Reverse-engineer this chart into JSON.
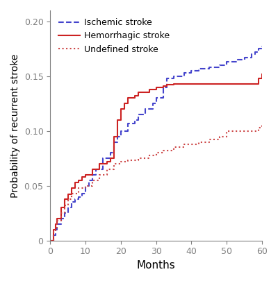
{
  "title": "",
  "xlabel": "Months",
  "ylabel": "Probability of recurrent stroke",
  "xlim": [
    0,
    60
  ],
  "ylim": [
    0,
    0.21
  ],
  "yticks": [
    0,
    0.05,
    0.1,
    0.15,
    0.2
  ],
  "xticks": [
    0,
    10,
    20,
    30,
    40,
    50,
    60
  ],
  "ischemic_x": [
    0,
    1,
    1.5,
    2,
    3,
    4,
    5,
    6,
    7,
    8,
    9,
    10,
    11,
    12,
    13,
    15,
    17,
    18,
    19,
    20,
    22,
    24,
    25,
    27,
    29,
    30,
    32,
    33,
    35,
    38,
    40,
    42,
    45,
    48,
    50,
    53,
    55,
    57,
    58,
    59,
    60
  ],
  "ischemic_y": [
    0,
    0.005,
    0.01,
    0.015,
    0.02,
    0.025,
    0.03,
    0.035,
    0.038,
    0.04,
    0.043,
    0.05,
    0.055,
    0.06,
    0.065,
    0.075,
    0.08,
    0.09,
    0.095,
    0.1,
    0.107,
    0.11,
    0.115,
    0.12,
    0.125,
    0.13,
    0.14,
    0.148,
    0.15,
    0.153,
    0.155,
    0.157,
    0.158,
    0.16,
    0.163,
    0.165,
    0.167,
    0.17,
    0.172,
    0.175,
    0.178
  ],
  "hemorrhagic_x": [
    0,
    1,
    1.5,
    2,
    3,
    4,
    5,
    6,
    7,
    8,
    9,
    10,
    12,
    14,
    16,
    17,
    18,
    19,
    20,
    21,
    22,
    24,
    25,
    28,
    30,
    32,
    33,
    35,
    40,
    45,
    50,
    55,
    58,
    59,
    60
  ],
  "hemorrhagic_y": [
    0,
    0.01,
    0.015,
    0.02,
    0.03,
    0.038,
    0.042,
    0.048,
    0.053,
    0.055,
    0.058,
    0.06,
    0.065,
    0.07,
    0.072,
    0.075,
    0.095,
    0.11,
    0.12,
    0.125,
    0.13,
    0.132,
    0.135,
    0.138,
    0.14,
    0.141,
    0.142,
    0.143,
    0.143,
    0.143,
    0.143,
    0.143,
    0.143,
    0.148,
    0.152
  ],
  "undefined_x": [
    0,
    1,
    1.5,
    2,
    3,
    4,
    5,
    6,
    8,
    10,
    12,
    14,
    16,
    18,
    20,
    22,
    25,
    28,
    30,
    32,
    35,
    38,
    42,
    45,
    48,
    50,
    53,
    55,
    57,
    59,
    60
  ],
  "undefined_y": [
    0,
    0.008,
    0.012,
    0.018,
    0.025,
    0.032,
    0.038,
    0.043,
    0.048,
    0.05,
    0.055,
    0.06,
    0.065,
    0.07,
    0.072,
    0.073,
    0.075,
    0.078,
    0.08,
    0.082,
    0.085,
    0.088,
    0.09,
    0.092,
    0.095,
    0.1,
    0.1,
    0.1,
    0.1,
    0.103,
    0.107
  ],
  "ischemic_color": "#4444cc",
  "hemorrhagic_color": "#cc2222",
  "undefined_color": "#cc4444",
  "legend_labels": [
    "Ischemic stroke",
    "Hemorrhagic stroke",
    "Undefined stroke"
  ],
  "figsize": [
    4.0,
    4.05
  ],
  "dpi": 100
}
